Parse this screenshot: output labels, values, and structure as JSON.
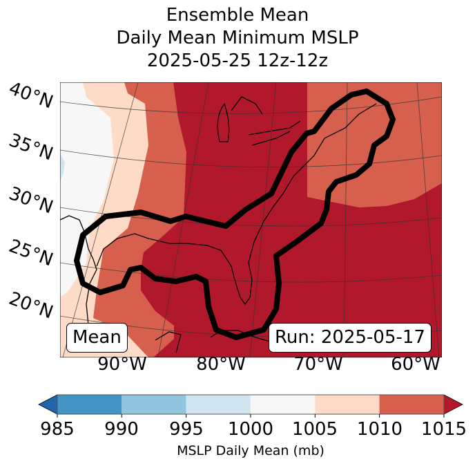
{
  "title": {
    "line1": "Ensemble Mean",
    "line2": "Daily Mean Minimum MSLP",
    "line3": "2025-05-25 12z-12z"
  },
  "map": {
    "lat_labels": [
      "40°N",
      "35°N",
      "30°N",
      "25°N",
      "20°N"
    ],
    "lon_labels": [
      "90°W",
      "80°W",
      "70°W",
      "60°W"
    ],
    "mean_label": "Mean",
    "run_label": "Run: 2025-05-17",
    "contour_color": "#000000"
  },
  "colorbar": {
    "ticks": [
      "985",
      "990",
      "995",
      "1000",
      "1005",
      "1010",
      "1015"
    ],
    "label": "MSLP Daily Mean (mb)",
    "colors": {
      "under": "#2166ac",
      "985-990": "#4393c3",
      "990-995": "#92c5de",
      "995-1000": "#d1e5f0",
      "1000-1005": "#f7f7f7",
      "1005-1010": "#fddbc7",
      "1010-1015": "#d6604d",
      "over": "#b2182b"
    }
  }
}
